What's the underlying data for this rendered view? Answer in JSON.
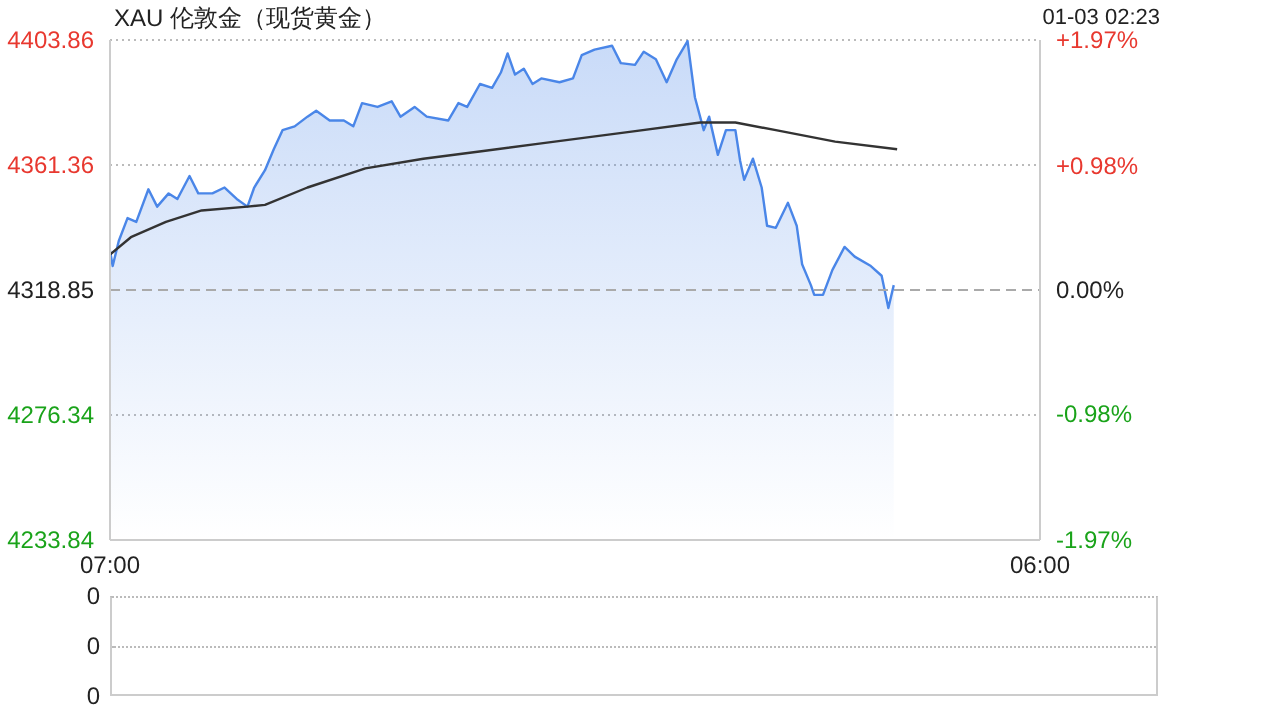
{
  "chart_data": [
    {
      "type": "area",
      "title": "XAU 伦敦金（现货黄金）",
      "annotations": [
        "01-03 02:23"
      ],
      "xlim": [
        "--01-02T07:00",
        "--01-03T06:00"
      ],
      "xticks": [
        {
          "value": "--01-02T07:00",
          "label": "07:00"
        },
        {
          "value": "--01-03T06:00",
          "label": "06:00"
        }
      ],
      "ylim": [
        4233.84,
        4403.86
      ],
      "yticks": [
        4233.84,
        4276.34,
        4318.85,
        4361.36,
        4403.86
      ],
      "y2lim": [
        -1.97,
        1.97
      ],
      "y2ticks": [
        {
          "value": -1.97,
          "label": "-1.97%"
        },
        {
          "value": -0.98,
          "label": "-0.98%"
        },
        {
          "value": 0,
          "label": "0.00%"
        },
        {
          "value": 0.98,
          "label": "+0.98%"
        },
        {
          "value": 1.97,
          "label": "+1.97%"
        }
      ],
      "grid": "y",
      "marker": "none",
      "ref_lines": [
        {
          "axis": "y",
          "value": 4318.85,
          "label": null,
          "line_style": "dashed",
          "color": "#aaaaaa"
        }
      ],
      "series": [
        {
          "color": "#4a86e8",
          "x": [
            "--01-02T07:00",
            "--01-02T07:04",
            "--01-02T07:13",
            "--01-02T07:26",
            "--01-02T07:39",
            "--01-02T07:57",
            "--01-02T08:10",
            "--01-02T08:27",
            "--01-02T08:40",
            "--01-02T08:58",
            "--01-02T09:11",
            "--01-02T09:32",
            "--01-02T09:50",
            "--01-02T10:08",
            "--01-02T10:24",
            "--01-02T10:34",
            "--01-02T10:50",
            "--01-02T11:03",
            "--01-02T11:16",
            "--01-02T11:34",
            "--01-02T11:53",
            "--01-02T12:06",
            "--01-02T12:26",
            "--01-02T12:47",
            "--01-02T13:01",
            "--01-02T13:14",
            "--01-02T13:37",
            "--01-02T13:58",
            "--01-02T14:11",
            "--01-02T14:32",
            "--01-02T14:50",
            "--01-02T15:22",
            "--01-02T15:37",
            "--01-02T15:50",
            "--01-02T16:09",
            "--01-02T16:27",
            "--01-02T16:40",
            "--01-02T16:50",
            "--01-02T17:01",
            "--01-02T17:14",
            "--01-02T17:27",
            "--01-02T17:40",
            "--01-02T18:07",
            "--01-02T18:27",
            "--01-02T18:40",
            "--01-02T18:59",
            "--01-02T19:25",
            "--01-02T19:38",
            "--01-02T19:59",
            "--01-02T20:12",
            "--01-02T20:30",
            "--01-02T20:46",
            "--01-02T21:01",
            "--01-02T21:17",
            "--01-02T21:28",
            "--01-02T21:41",
            "--01-02T21:49",
            "--01-02T22:02",
            "--01-02T22:14",
            "--01-02T22:28",
            "--01-02T22:35",
            "--01-02T22:41",
            "--01-02T22:54",
            "--01-02T23:07",
            "--01-02T23:15",
            "--01-02T23:28",
            "--01-02T23:46",
            "--01-02T23:59",
            "--01-03T00:07",
            "--01-03T00:20",
            "--01-03T00:25",
            "--01-03T00:38",
            "--01-03T00:52",
            "--01-03T01:10",
            "--01-03T01:25",
            "--01-03T01:49",
            "--01-03T02:05",
            "--01-03T02:15",
            "--01-03T02:23"
          ],
          "values": [
            4332.2,
            4327.0,
            4335.5,
            4343.3,
            4342.0,
            4353.1,
            4347.2,
            4351.7,
            4349.8,
            4357.6,
            4351.7,
            4351.7,
            4353.7,
            4349.8,
            4347.2,
            4353.7,
            4359.6,
            4366.7,
            4373.2,
            4374.5,
            4377.8,
            4379.8,
            4376.5,
            4376.5,
            4374.5,
            4382.4,
            4381.1,
            4383.0,
            4377.8,
            4381.1,
            4377.8,
            4376.5,
            4382.4,
            4381.1,
            4388.9,
            4387.6,
            4392.8,
            4399.3,
            4392.1,
            4394.1,
            4388.9,
            4390.8,
            4389.5,
            4390.8,
            4398.7,
            4400.6,
            4401.9,
            4396.0,
            4395.4,
            4399.9,
            4397.3,
            4389.5,
            4397.3,
            4403.5,
            4384.3,
            4373.2,
            4377.8,
            4364.8,
            4373.2,
            4373.2,
            4362.8,
            4356.3,
            4363.5,
            4353.7,
            4340.7,
            4340.0,
            4348.5,
            4340.7,
            4327.6,
            4320.5,
            4317.2,
            4317.2,
            4325.7,
            4333.5,
            4330.2,
            4327.0,
            4323.7,
            4312.7,
            4320.5
          ]
        },
        {
          "type": "line",
          "color": "#333333",
          "x": [
            "--01-02T07:00",
            "--01-02T07:31",
            "--01-02T08:23",
            "--01-02T09:16",
            "--01-02T10:24",
            "--01-02T10:50",
            "--01-02T11:53",
            "--01-02T13:19",
            "--01-02T14:45",
            "--01-02T16:14",
            "--01-02T17:40",
            "--01-02T19:51",
            "--01-02T21:36",
            "--01-02T22:28",
            "--01-02T23:28",
            "--01-03T00:56",
            "--01-03T02:28"
          ],
          "values": [
            4330.9,
            4336.8,
            4342.0,
            4345.9,
            4347.2,
            4347.8,
            4353.7,
            4360.2,
            4363.5,
            4366.1,
            4368.7,
            4372.6,
            4375.8,
            4375.8,
            4373.2,
            4369.3,
            4366.7
          ]
        }
      ]
    },
    {
      "type": "other",
      "annotations": [
        "0",
        "0",
        "0"
      ]
    }
  ]
}
